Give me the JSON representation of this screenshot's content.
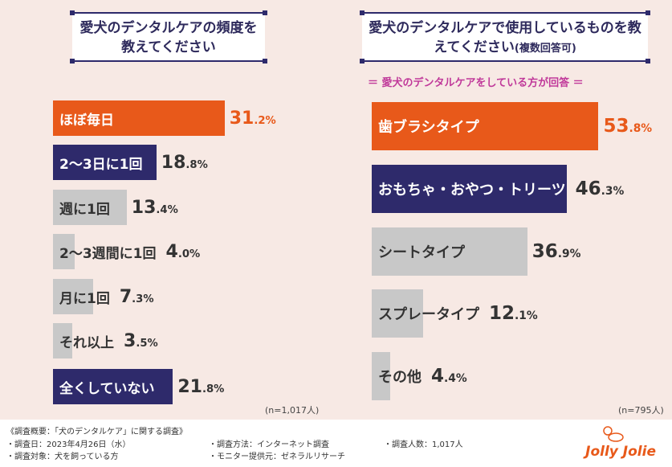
{
  "colors": {
    "orange": "#e8591a",
    "navy": "#2e2a6b",
    "gray": "#c8c8c8"
  },
  "chart_data": [
    {
      "type": "bar",
      "orientation": "horizontal",
      "title": "愛犬のデンタルケアの頻度を教えてください",
      "n_label": "(n=1,017人)",
      "categories": [
        "ほぼ毎日",
        "2〜3日に1回",
        "週に1回",
        "2〜3週間に1回",
        "月に1回",
        "それ以上",
        "全くしていない"
      ],
      "values": [
        31.2,
        18.8,
        13.4,
        4.0,
        7.3,
        3.5,
        21.8
      ],
      "bar_colors": [
        "orange",
        "navy",
        "gray",
        "gray",
        "gray",
        "gray",
        "navy"
      ],
      "unit": "%"
    },
    {
      "type": "bar",
      "orientation": "horizontal",
      "title": "愛犬のデンタルケアで使用しているものを教えてください",
      "title_sub": "(複数回答可)",
      "note": "＝ 愛犬のデンタルケアをしている方が回答 ＝",
      "n_label": "(n=795人)",
      "categories": [
        "歯ブラシタイプ",
        "おもちゃ・おやつ・トリーツ",
        "シートタイプ",
        "スプレータイプ",
        "その他"
      ],
      "values": [
        53.8,
        46.3,
        36.9,
        12.1,
        4.4
      ],
      "bar_colors": [
        "orange",
        "navy",
        "gray",
        "gray",
        "gray"
      ],
      "unit": "%"
    }
  ],
  "footer": {
    "heading": "《調査概要：「犬のデンタルケア」に関する調査》",
    "date": "・調査日：2023年4月26日（水）",
    "target": "・調査対象：犬を飼っている方",
    "method": "・調査方法：インターネット調査",
    "provider": "・モニター提供元：ゼネラルリサーチ",
    "count": "・調査人数：1,017人"
  },
  "logo": "Jolly Jolie"
}
